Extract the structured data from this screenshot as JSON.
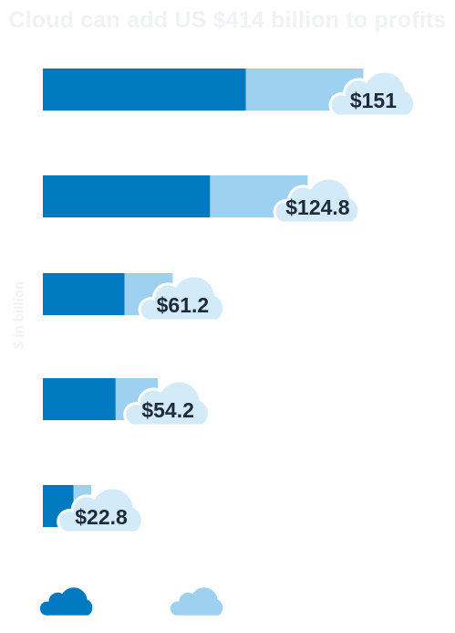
{
  "chart_data": {
    "type": "bar",
    "orientation": "horizontal",
    "stacked": true,
    "title": "Cloud can add US $414 billion to profits",
    "ylabel": "$ in billion",
    "xlim": [
      0,
      165
    ],
    "series": [
      {
        "values": [
          95.7,
          78.8,
          38.5,
          34.3,
          14.4
        ]
      },
      {
        "values": [
          55.3,
          46.0,
          22.7,
          19.9,
          8.4
        ]
      }
    ],
    "totals": [
      "$151",
      "$124.8",
      "$61.2",
      "$54.2",
      "$22.8"
    ],
    "legend_position": "bottom",
    "colors": {
      "dark": "#0079c1",
      "light": "#9ed0ef",
      "cloud": "#d3eaf9",
      "label": "#1d2a3a"
    }
  }
}
